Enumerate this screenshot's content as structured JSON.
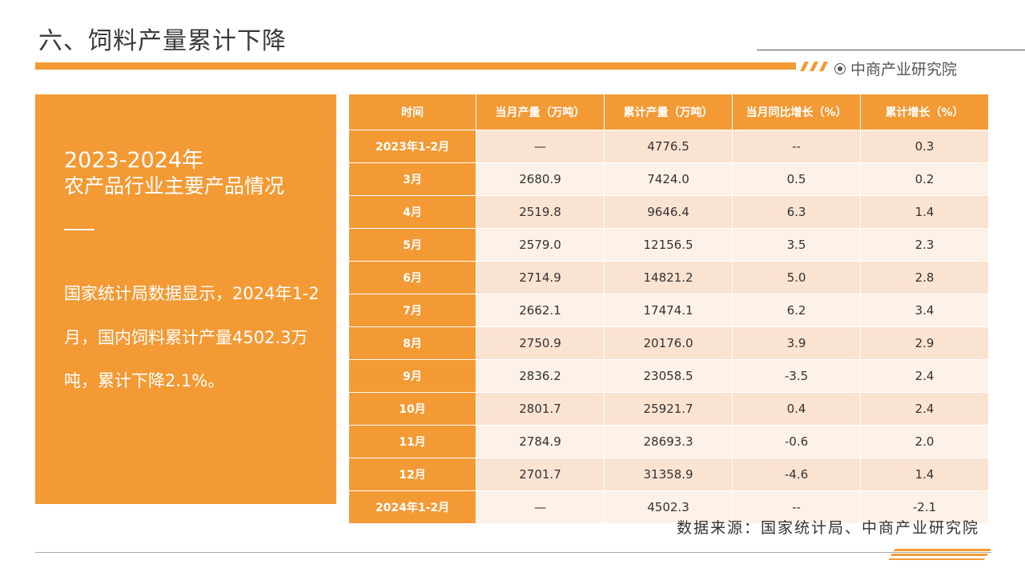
{
  "header": {
    "title": "六、饲料产量累计下降",
    "brand": "中商产业研究院",
    "accent_color": "#f39a35"
  },
  "left_panel": {
    "year": "2023-2024年",
    "subtitle": "农产品行业主要产品情况",
    "text": "国家统计局数据显示，2024年1-2月，国内饲料累计产量4502.3万吨，累计下降2.1%。"
  },
  "table": {
    "columns": [
      "时间",
      "当月产量（万吨）",
      "累计产量（万吨）",
      "当月同比增长（%）",
      "累计增长（%）"
    ],
    "rows": [
      [
        "2023年1-2月",
        "—",
        "4776.5",
        "--",
        "0.3"
      ],
      [
        "3月",
        "2680.9",
        "7424.0",
        "0.5",
        "0.2"
      ],
      [
        "4月",
        "2519.8",
        "9646.4",
        "6.3",
        "1.4"
      ],
      [
        "5月",
        "2579.0",
        "12156.5",
        "3.5",
        "2.3"
      ],
      [
        "6月",
        "2714.9",
        "14821.2",
        "5.0",
        "2.8"
      ],
      [
        "7月",
        "2662.1",
        "17474.1",
        "6.2",
        "3.4"
      ],
      [
        "8月",
        "2750.9",
        "20176.0",
        "3.9",
        "2.9"
      ],
      [
        "9月",
        "2836.2",
        "23058.5",
        "-3.5",
        "2.4"
      ],
      [
        "10月",
        "2801.7",
        "25921.7",
        "0.4",
        "2.4"
      ],
      [
        "11月",
        "2784.9",
        "28693.3",
        "-0.6",
        "2.0"
      ],
      [
        "12月",
        "2701.7",
        "31358.9",
        "-4.6",
        "1.4"
      ],
      [
        "2024年1-2月",
        "—",
        "4502.3",
        "--",
        "-2.1"
      ]
    ]
  },
  "footer": {
    "source": "数据来源：国家统计局、中商产业研究院"
  }
}
